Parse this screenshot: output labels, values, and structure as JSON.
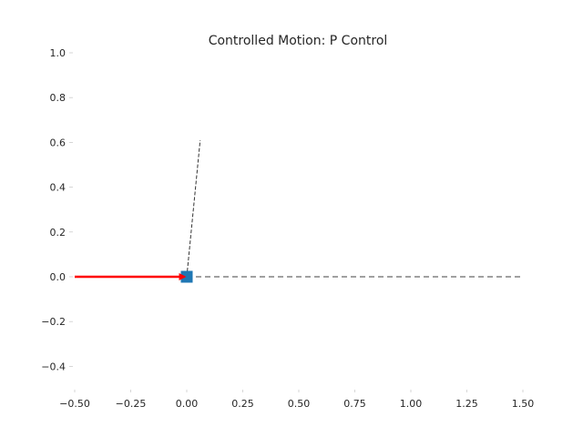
{
  "chart_data": {
    "type": "line",
    "title": "Controlled Motion: P Control",
    "xlabel": "",
    "ylabel": "",
    "xlim": [
      -0.5,
      1.5
    ],
    "ylim": [
      -0.5,
      1.0
    ],
    "x_ticks": [
      "−0.50",
      "−0.25",
      "0.00",
      "0.25",
      "0.50",
      "0.75",
      "1.00",
      "1.25",
      "1.50"
    ],
    "x_tick_values": [
      -0.5,
      -0.25,
      0.0,
      0.25,
      0.5,
      0.75,
      1.0,
      1.25,
      1.5
    ],
    "y_ticks": [
      "1.0",
      "0.8",
      "0.6",
      "0.4",
      "0.2",
      "0.0",
      "−0.2",
      "−0.4"
    ],
    "y_tick_values": [
      1.0,
      0.8,
      0.6,
      0.4,
      0.2,
      0.0,
      -0.2,
      -0.4
    ],
    "grid": false,
    "spines": false,
    "series": [
      {
        "kind": "dashed-line",
        "color": "#808080",
        "points": [
          [
            0.0,
            0.0
          ],
          [
            1.5,
            0.0
          ]
        ]
      },
      {
        "kind": "dashed-line",
        "color": "#333333",
        "points": [
          [
            0.0,
            0.0
          ],
          [
            0.06,
            0.61
          ]
        ]
      },
      {
        "kind": "square-marker",
        "color": "#1f77b4",
        "points": [
          [
            0.0,
            0.0
          ]
        ]
      },
      {
        "kind": "arrow",
        "color": "#ff0000",
        "from": [
          -0.5,
          0.0
        ],
        "to": [
          -0.01,
          0.0
        ]
      }
    ]
  }
}
